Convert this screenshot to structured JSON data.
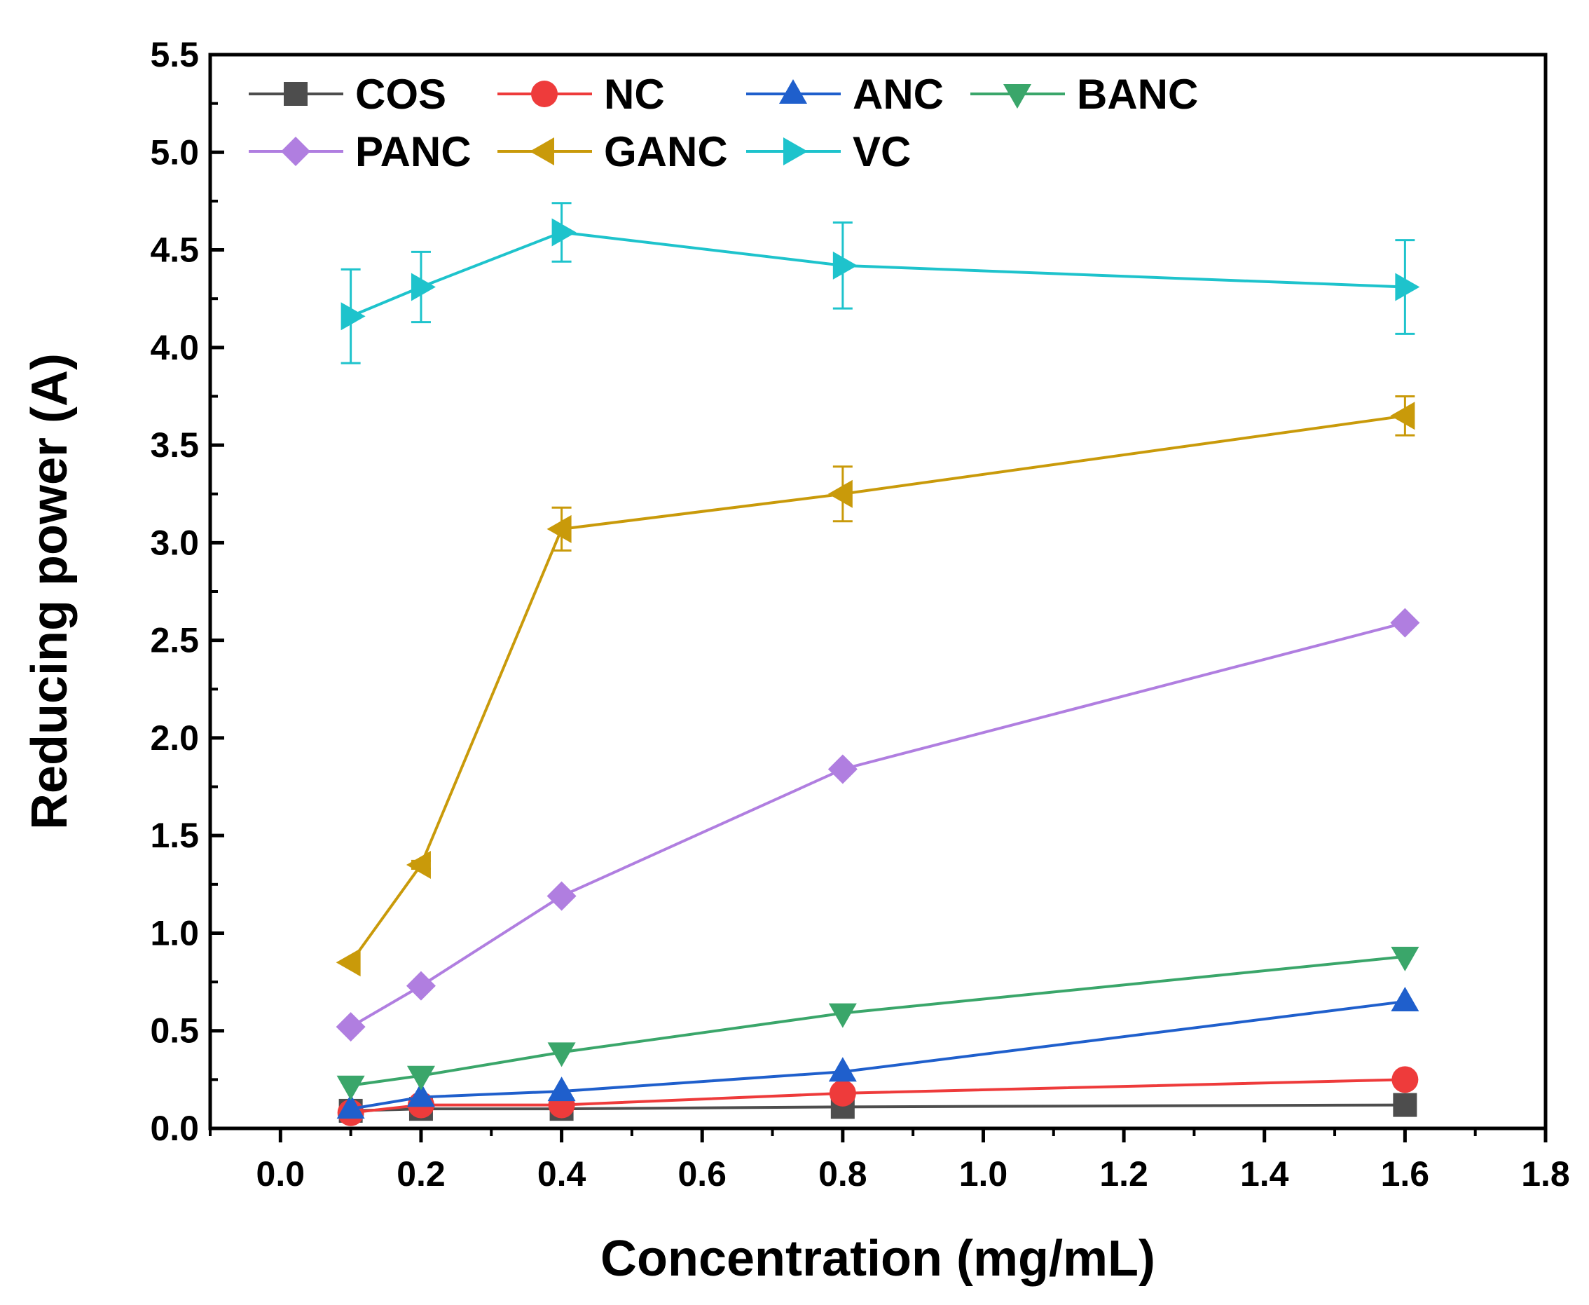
{
  "chart_data": {
    "type": "line",
    "title": "",
    "xlabel": "Concentration (mg/mL)",
    "ylabel": "Reducing power (A)",
    "xlim": [
      -0.1,
      1.8
    ],
    "ylim": [
      0.0,
      5.5
    ],
    "xticks": [
      0.0,
      0.2,
      0.4,
      0.6,
      0.8,
      1.0,
      1.2,
      1.4,
      1.6,
      1.8
    ],
    "xtick_labels": [
      "0.0",
      "0.2",
      "0.4",
      "0.6",
      "0.8",
      "1.0",
      "1.2",
      "1.4",
      "1.6",
      "1.8"
    ],
    "yticks": [
      0.0,
      0.5,
      1.0,
      1.5,
      2.0,
      2.5,
      3.0,
      3.5,
      4.0,
      4.5,
      5.0,
      5.5
    ],
    "ytick_labels": [
      "0.0",
      "0.5",
      "1.0",
      "1.5",
      "2.0",
      "2.5",
      "3.0",
      "3.5",
      "4.0",
      "4.5",
      "5.0",
      "5.5"
    ],
    "grid": false,
    "legend_position": "top-left",
    "x": [
      0.1,
      0.2,
      0.4,
      0.8,
      1.6
    ],
    "series": [
      {
        "name": "COS",
        "color": "#4d4d4d",
        "marker": "square",
        "values": [
          0.09,
          0.1,
          0.1,
          0.11,
          0.12
        ],
        "errors": [
          0,
          0,
          0,
          0,
          0
        ]
      },
      {
        "name": "NC",
        "color": "#ee3b3b",
        "marker": "circle",
        "values": [
          0.08,
          0.12,
          0.12,
          0.18,
          0.25
        ],
        "errors": [
          0,
          0,
          0,
          0,
          0
        ]
      },
      {
        "name": "ANC",
        "color": "#1f5fcc",
        "marker": "triangle-up",
        "values": [
          0.1,
          0.16,
          0.19,
          0.29,
          0.65
        ],
        "errors": [
          0,
          0,
          0,
          0,
          0
        ]
      },
      {
        "name": "BANC",
        "color": "#3aa66a",
        "marker": "triangle-down",
        "values": [
          0.22,
          0.27,
          0.39,
          0.59,
          0.88
        ],
        "errors": [
          0,
          0,
          0,
          0,
          0
        ]
      },
      {
        "name": "PANC",
        "color": "#b07ee0",
        "marker": "diamond",
        "values": [
          0.52,
          0.73,
          1.19,
          1.84,
          2.59
        ],
        "errors": [
          0,
          0,
          0,
          0,
          0
        ]
      },
      {
        "name": "GANC",
        "color": "#c99a0a",
        "marker": "triangle-left",
        "values": [
          0.85,
          1.35,
          3.07,
          3.25,
          3.65
        ],
        "errors": [
          0,
          0.02,
          0.11,
          0.14,
          0.1
        ]
      },
      {
        "name": "VC",
        "color": "#1ec3cc",
        "marker": "triangle-right",
        "values": [
          4.16,
          4.31,
          4.59,
          4.42,
          4.31
        ],
        "errors": [
          0.24,
          0.18,
          0.15,
          0.22,
          0.24
        ]
      }
    ]
  }
}
